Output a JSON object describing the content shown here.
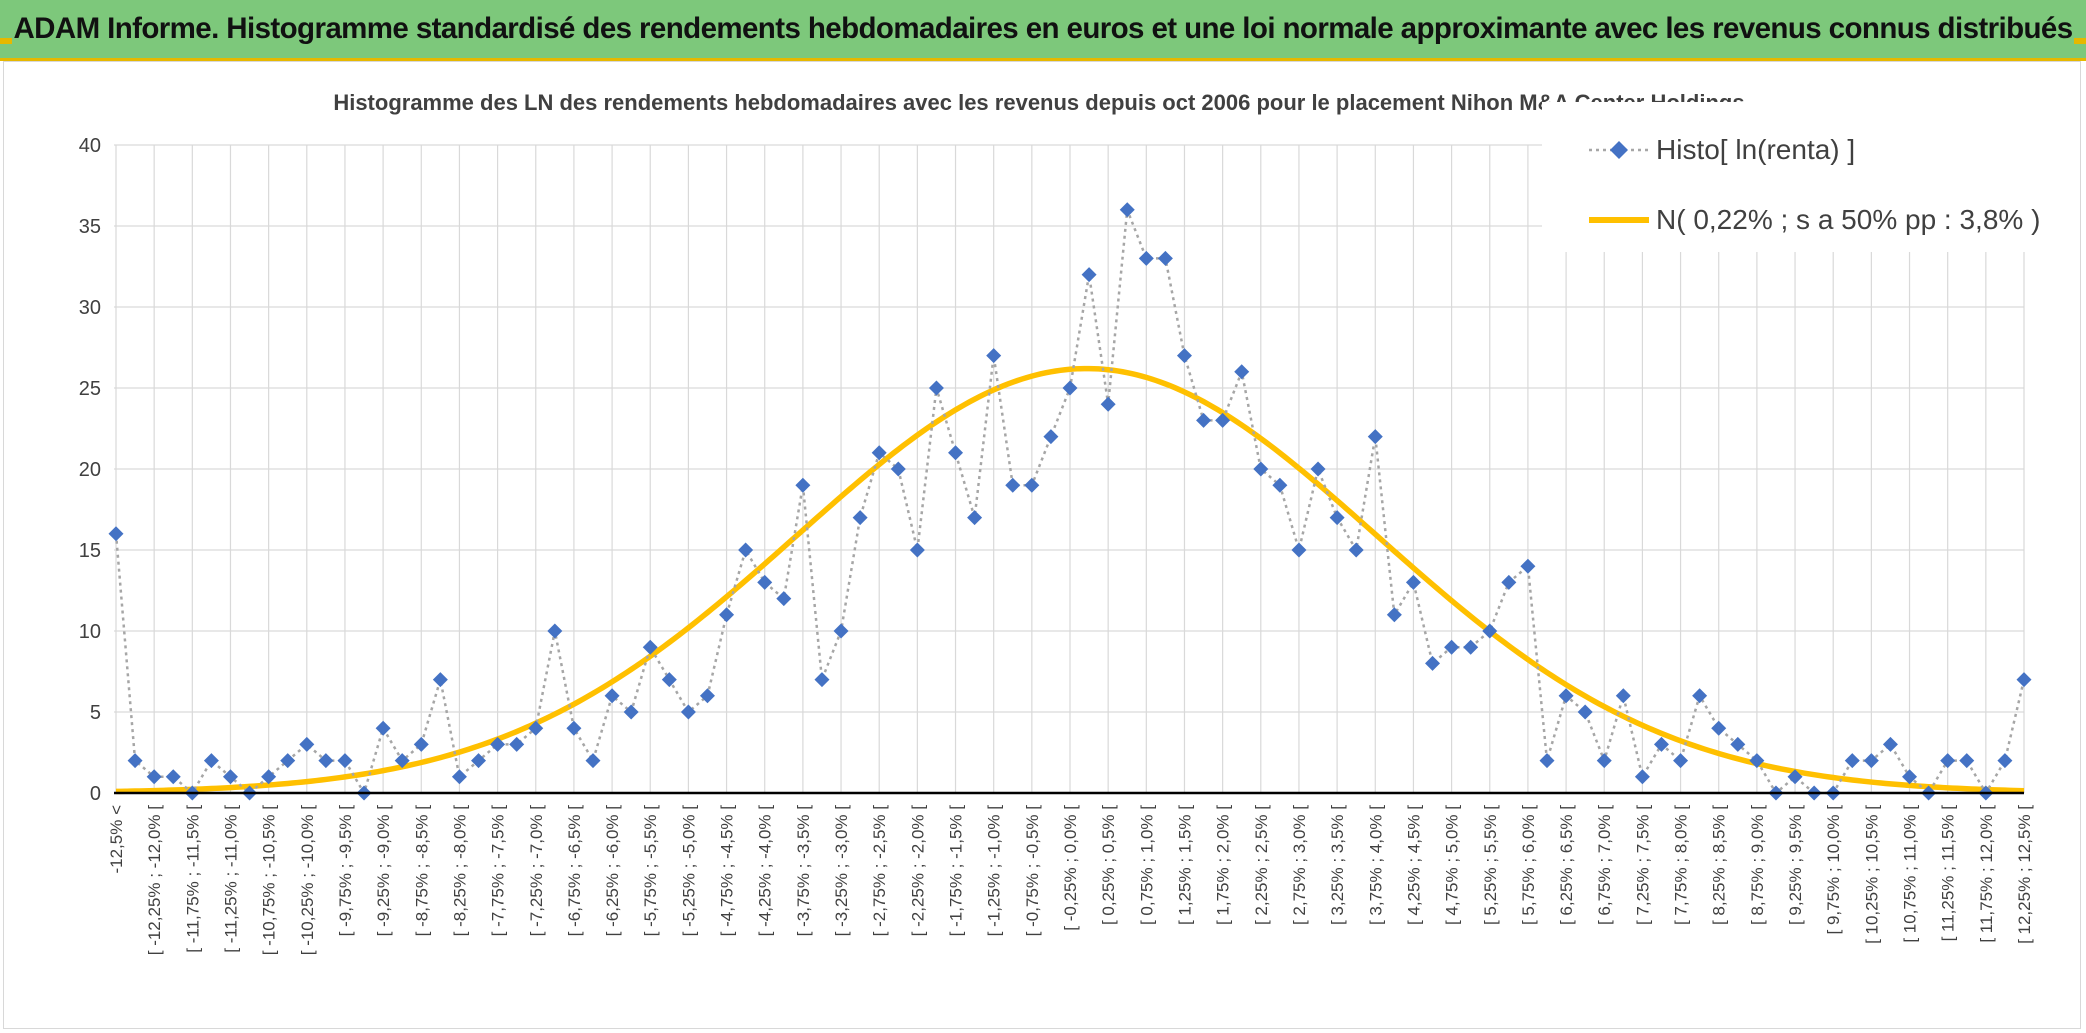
{
  "banner": {
    "title": "ADAM Informe. Histogramme standardisé des rendements hebdomadaires en euros et une loi normale approximante avec les revenus connus distribués"
  },
  "colors": {
    "banner_bg": "#7dc87b",
    "accent": "#e6b800",
    "histo": "#4472c4",
    "histo_line": "#a6a6a6",
    "normal": "#ffc000",
    "grid": "#d9d9d9"
  },
  "chart_data": {
    "type": "line",
    "title": "Histogramme des LN des rendements hebdomadaires avec les revenus depuis oct 2006 pour le placement Nihon M&A Center Holdings.",
    "xlabel": "",
    "ylabel": "",
    "ylim": [
      0,
      40
    ],
    "yticks": [
      "0",
      "5",
      "10",
      "15",
      "20",
      "25",
      "30",
      "35",
      "40"
    ],
    "categories": [
      "-12,5% <",
      "[ -12,25% ; -12,0% [",
      "[ -11,75% ; -11,5% [",
      "[ -11,25% ; -11,0% [",
      "[ -10,75% ; -10,5% [",
      "[ -10,25% ; -10,0% [",
      "[ -9,75% ; -9,5% [",
      "[ -9,25% ; -9,0% [",
      "[ -8,75% ; -8,5% [",
      "[ -8,25% ; -8,0% [",
      "[ -7,75% ; -7,5% [",
      "[ -7,25% ; -7,0% [",
      "[ -6,75% ; -6,5% [",
      "[ -6,25% ; -6,0% [",
      "[ -5,75% ; -5,5% [",
      "[ -5,25% ; -5,0% [",
      "[ -4,75% ; -4,5% [",
      "[ -4,25% ; -4,0% [",
      "[ -3,75% ; -3,5% [",
      "[ -3,25% ; -3,0% [",
      "[ -2,75% ; -2,5% [",
      "[ -2,25% ; -2,0% [",
      "[ -1,75% ; -1,5% [",
      "[ -1,25% ; -1,0% [",
      "[ -0,75% ; -0,5% [",
      "[ -0,25% ; 0,0% [",
      "[ 0,25% ; 0,5% [",
      "[ 0,75% ; 1,0% [",
      "[ 1,25% ; 1,5% [",
      "[ 1,75% ; 2,0% [",
      "[ 2,25% ; 2,5% [",
      "[ 2,75% ; 3,0% [",
      "[ 3,25% ; 3,5% [",
      "[ 3,75% ; 4,0% [",
      "[ 4,25% ; 4,5% [",
      "[ 4,75% ; 5,0% [",
      "[ 5,25% ; 5,5% [",
      "[ 5,75% ; 6,0% [",
      "[ 6,25% ; 6,5% [",
      "[ 6,75% ; 7,0% [",
      "[ 7,25% ; 7,5% [",
      "[ 7,75% ; 8,0% [",
      "[ 8,25% ; 8,5% [",
      "[ 8,75% ; 9,0% [",
      "[ 9,25% ; 9,5% [",
      "[ 9,75% ; 10,0% [",
      "[ 10,25% ; 10,5% [",
      "[ 10,75% ; 11,0% [",
      "[ 11,25% ; 11,5% [",
      "[ 11,75% ; 12,0% [",
      "[ 12,25% ; 12,5% ["
    ],
    "x_start": -12.5,
    "x_step": 0.25,
    "histo_values": [
      16,
      2,
      1,
      1,
      0,
      2,
      1,
      0,
      1,
      2,
      3,
      2,
      2,
      0,
      4,
      2,
      3,
      7,
      1,
      2,
      3,
      3,
      4,
      10,
      4,
      2,
      6,
      5,
      9,
      7,
      5,
      6,
      11,
      15,
      13,
      12,
      19,
      7,
      10,
      17,
      21,
      20,
      15,
      25,
      21,
      17,
      27,
      19,
      19,
      22,
      25,
      32,
      24,
      36,
      33,
      33,
      27,
      23,
      23,
      26,
      20,
      19,
      15,
      20,
      17,
      15,
      22,
      11,
      13,
      8,
      9,
      9,
      10,
      13,
      14,
      2,
      6,
      5,
      2,
      6,
      1,
      3,
      2,
      6,
      4,
      3,
      2,
      0,
      1,
      0,
      0,
      2,
      2,
      3,
      1,
      0,
      2,
      2,
      0,
      2,
      7
    ],
    "normal": {
      "mean": 0.22,
      "sd": 3.8,
      "peak": 26.2
    },
    "series": [
      {
        "name": "Histo[ ln(renta) ]",
        "style": "dotted-line-diamond-markers"
      },
      {
        "name": "N( 0,22% ; s a 50% pp : 3,8% )",
        "style": "solid-line"
      }
    ],
    "legend_position": "top-right",
    "grid": true
  }
}
